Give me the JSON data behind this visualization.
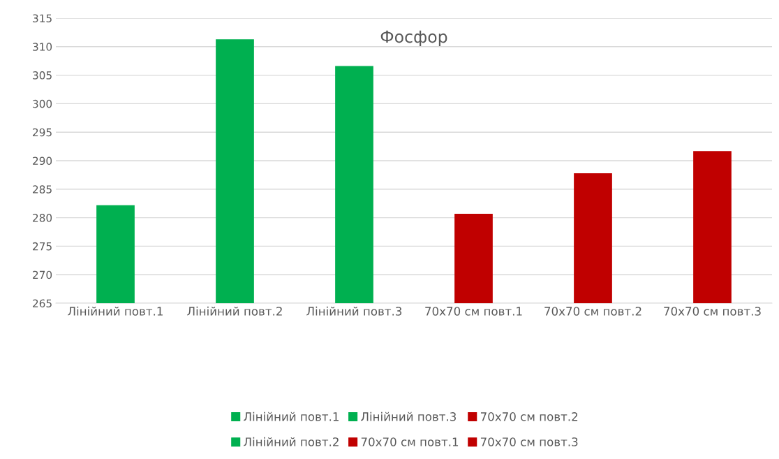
{
  "chart_data": {
    "type": "bar",
    "title": "Фосфор",
    "categories": [
      "Лінійний повт.1",
      "Лінійний повт.2",
      "Лінійний повт.3",
      "70x70 см повт.1",
      "70x70 см повт.2",
      "70x70 см повт.3"
    ],
    "series": [
      {
        "name": "Лінійний повт.1",
        "color": "#00b050",
        "values": [
          282.2,
          null,
          null,
          null,
          null,
          null
        ]
      },
      {
        "name": "Лінійний повт.2",
        "color": "#00b050",
        "values": [
          null,
          311.3,
          null,
          null,
          null,
          null
        ]
      },
      {
        "name": "Лінійний повт.3",
        "color": "#00b050",
        "values": [
          null,
          null,
          306.6,
          null,
          null,
          null
        ]
      },
      {
        "name": "70x70 см повт.1",
        "color": "#c00000",
        "values": [
          null,
          null,
          null,
          280.7,
          null,
          null
        ]
      },
      {
        "name": "70x70 см повт.2",
        "color": "#c00000",
        "values": [
          null,
          null,
          null,
          null,
          287.8,
          null
        ]
      },
      {
        "name": "70x70 см повт.3",
        "color": "#c00000",
        "values": [
          null,
          null,
          null,
          null,
          null,
          291.7
        ]
      }
    ],
    "ylim": [
      265,
      315
    ],
    "yticks": [
      265,
      270,
      275,
      280,
      285,
      290,
      295,
      300,
      305,
      310,
      315
    ],
    "grid": "y",
    "legend": "bottom"
  }
}
